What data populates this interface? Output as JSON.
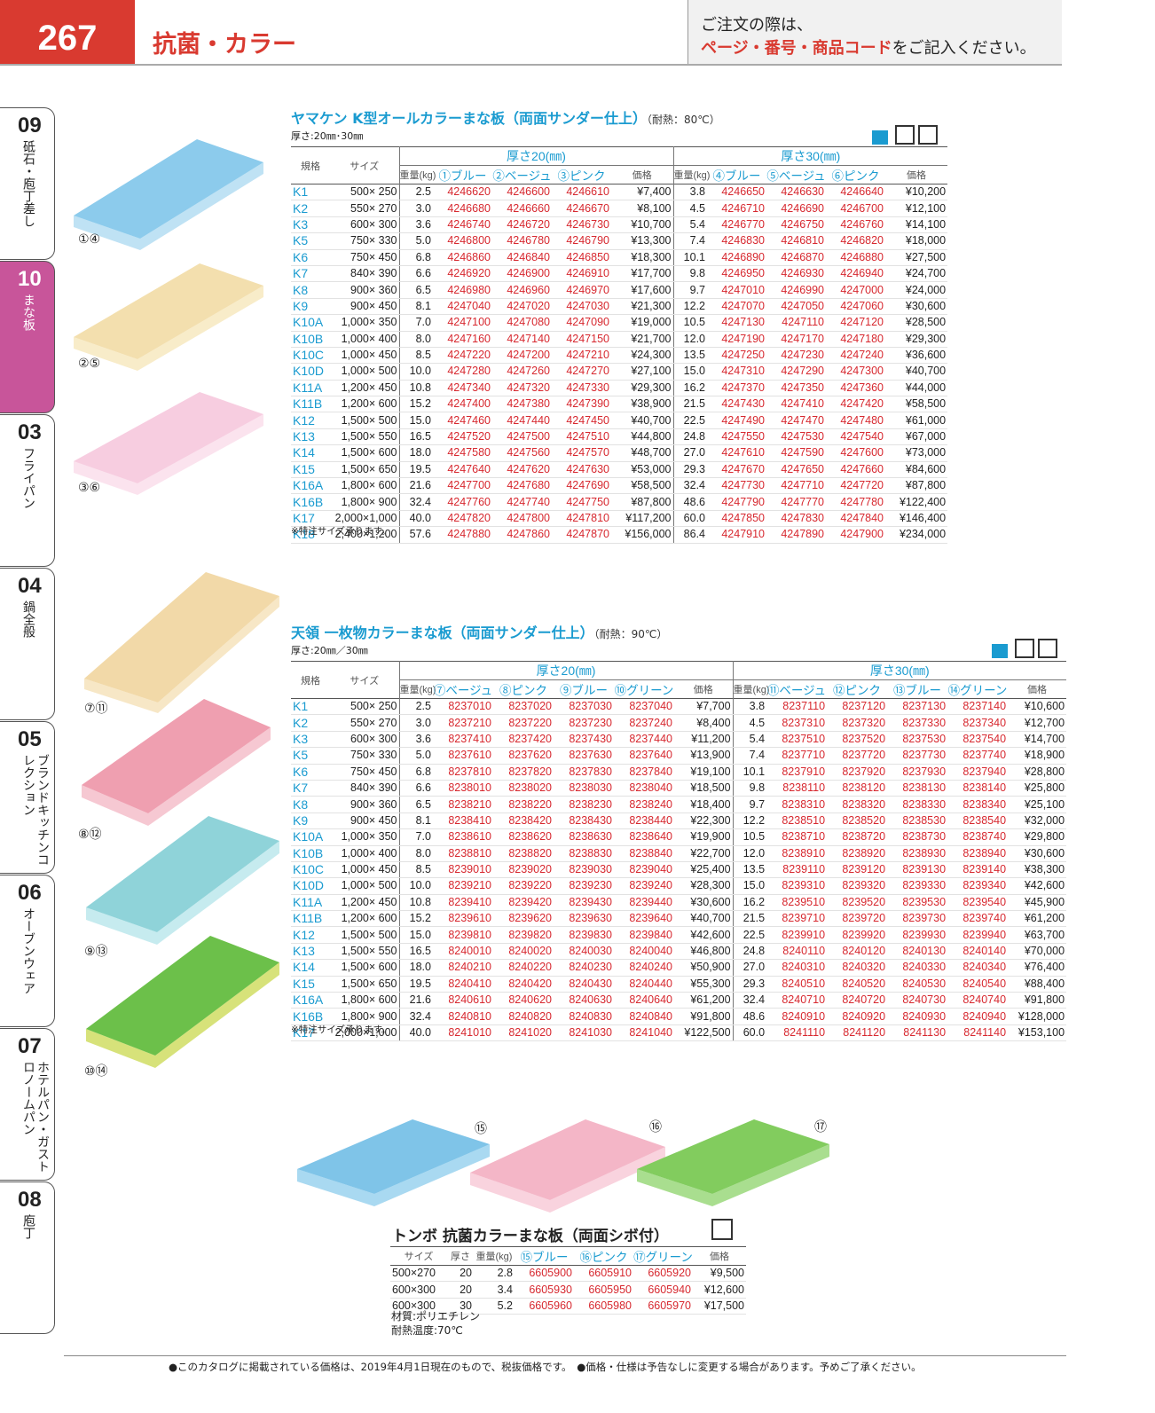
{
  "header": {
    "page": "267",
    "title": "抗菌・カラー",
    "notice": [
      "ご注文の際は、",
      "ページ・番号・商品コード",
      "をご記入ください。"
    ]
  },
  "tabs": [
    {
      "num": "09",
      "label": "砥石・庖丁差し"
    },
    {
      "num": "10",
      "label": "まな板"
    },
    {
      "num": "03",
      "label": "フライパン"
    },
    {
      "num": "04",
      "label": "鍋全般"
    },
    {
      "num": "05",
      "label": "ブランドキッチンコレクション"
    },
    {
      "num": "06",
      "label": "オーブンウェア"
    },
    {
      "num": "07",
      "label": "ホテルパン・ガストロノームパン"
    },
    {
      "num": "08",
      "label": "庖丁"
    }
  ],
  "products": [
    {
      "title": "ヤマケン K型オールカラーまな板（両面サンダー仕上）",
      "heat": "（耐熱：80℃）",
      "thickness": "厚さ:20㎜･30㎜",
      "image_labels": [
        "①④",
        "②⑤",
        "③⑥"
      ],
      "table": {
        "head1": [
          "規格",
          "サイズ",
          "厚さ20(㎜)",
          "厚さ30(㎜)"
        ],
        "head2": [
          "重量(kg)",
          "①ブルー",
          "②ベージュ",
          "③ピンク",
          "価格",
          "重量(kg)",
          "④ブルー",
          "⑤ベージュ",
          "⑥ピンク",
          "価格"
        ],
        "rows": [
          [
            "K1",
            "500× 250",
            "2.5",
            "4246620",
            "4246600",
            "4246610",
            "¥7,400",
            "3.8",
            "4246650",
            "4246630",
            "4246640",
            "¥10,200"
          ],
          [
            "K2",
            "550× 270",
            "3.0",
            "4246680",
            "4246660",
            "4246670",
            "¥8,100",
            "4.5",
            "4246710",
            "4246690",
            "4246700",
            "¥12,100"
          ],
          [
            "K3",
            "600× 300",
            "3.6",
            "4246740",
            "4246720",
            "4246730",
            "¥10,700",
            "5.4",
            "4246770",
            "4246750",
            "4246760",
            "¥14,100"
          ],
          [
            "K5",
            "750× 330",
            "5.0",
            "4246800",
            "4246780",
            "4246790",
            "¥13,300",
            "7.4",
            "4246830",
            "4246810",
            "4246820",
            "¥18,000"
          ],
          [
            "K6",
            "750× 450",
            "6.8",
            "4246860",
            "4246840",
            "4246850",
            "¥18,300",
            "10.1",
            "4246890",
            "4246870",
            "4246880",
            "¥27,500"
          ],
          [
            "K7",
            "840× 390",
            "6.6",
            "4246920",
            "4246900",
            "4246910",
            "¥17,700",
            "9.8",
            "4246950",
            "4246930",
            "4246940",
            "¥24,700"
          ],
          [
            "K8",
            "900× 360",
            "6.5",
            "4246980",
            "4246960",
            "4246970",
            "¥17,600",
            "9.7",
            "4247010",
            "4246990",
            "4247000",
            "¥24,000"
          ],
          [
            "K9",
            "900× 450",
            "8.1",
            "4247040",
            "4247020",
            "4247030",
            "¥21,300",
            "12.2",
            "4247070",
            "4247050",
            "4247060",
            "¥30,600"
          ],
          [
            "K10A",
            "1,000× 350",
            "7.0",
            "4247100",
            "4247080",
            "4247090",
            "¥19,000",
            "10.5",
            "4247130",
            "4247110",
            "4247120",
            "¥28,500"
          ],
          [
            "K10B",
            "1,000× 400",
            "8.0",
            "4247160",
            "4247140",
            "4247150",
            "¥21,700",
            "12.0",
            "4247190",
            "4247170",
            "4247180",
            "¥29,300"
          ],
          [
            "K10C",
            "1,000× 450",
            "8.5",
            "4247220",
            "4247200",
            "4247210",
            "¥24,300",
            "13.5",
            "4247250",
            "4247230",
            "4247240",
            "¥36,600"
          ],
          [
            "K10D",
            "1,000× 500",
            "10.0",
            "4247280",
            "4247260",
            "4247270",
            "¥27,100",
            "15.0",
            "4247310",
            "4247290",
            "4247300",
            "¥40,700"
          ],
          [
            "K11A",
            "1,200× 450",
            "10.8",
            "4247340",
            "4247320",
            "4247330",
            "¥29,300",
            "16.2",
            "4247370",
            "4247350",
            "4247360",
            "¥44,000"
          ],
          [
            "K11B",
            "1,200× 600",
            "15.2",
            "4247400",
            "4247380",
            "4247390",
            "¥38,900",
            "21.5",
            "4247430",
            "4247410",
            "4247420",
            "¥58,500"
          ],
          [
            "K12",
            "1,500× 500",
            "15.0",
            "4247460",
            "4247440",
            "4247450",
            "¥40,700",
            "22.5",
            "4247490",
            "4247470",
            "4247480",
            "¥61,000"
          ],
          [
            "K13",
            "1,500× 550",
            "16.5",
            "4247520",
            "4247500",
            "4247510",
            "¥44,800",
            "24.8",
            "4247550",
            "4247530",
            "4247540",
            "¥67,000"
          ],
          [
            "K14",
            "1,500× 600",
            "18.0",
            "4247580",
            "4247560",
            "4247570",
            "¥48,700",
            "27.0",
            "4247610",
            "4247590",
            "4247600",
            "¥73,000"
          ],
          [
            "K15",
            "1,500× 650",
            "19.5",
            "4247640",
            "4247620",
            "4247630",
            "¥53,000",
            "29.3",
            "4247670",
            "4247650",
            "4247660",
            "¥84,600"
          ],
          [
            "K16A",
            "1,800× 600",
            "21.6",
            "4247700",
            "4247680",
            "4247690",
            "¥58,500",
            "32.4",
            "4247730",
            "4247710",
            "4247720",
            "¥87,800"
          ],
          [
            "K16B",
            "1,800× 900",
            "32.4",
            "4247760",
            "4247740",
            "4247750",
            "¥87,800",
            "48.6",
            "4247790",
            "4247770",
            "4247780",
            "¥122,400"
          ],
          [
            "K17",
            "2,000×1,000",
            "40.0",
            "4247820",
            "4247800",
            "4247810",
            "¥117,200",
            "60.0",
            "4247850",
            "4247830",
            "4247840",
            "¥146,400"
          ],
          [
            "K18",
            "2,400×1,200",
            "57.6",
            "4247880",
            "4247860",
            "4247870",
            "¥156,000",
            "86.4",
            "4247910",
            "4247890",
            "4247900",
            "¥234,000"
          ]
        ]
      },
      "note": "※特注サイズ承ります。"
    },
    {
      "title": "天領 一枚物カラーまな板（両面サンダー仕上）",
      "heat": "（耐熱：90℃）",
      "thickness": "厚さ:20㎜／30㎜",
      "image_labels": [
        "⑦⑪",
        "⑧⑫",
        "⑨⑬",
        "⑩⑭"
      ],
      "table": {
        "head1": [
          "規格",
          "サイズ",
          "厚さ20(㎜)",
          "厚さ30(㎜)"
        ],
        "head2": [
          "重量(kg)",
          "⑦ベージュ",
          "⑧ピンク",
          "⑨ブルー",
          "⑩グリーン",
          "価格",
          "重量(kg)",
          "⑪ベージュ",
          "⑫ピンク",
          "⑬ブルー",
          "⑭グリーン",
          "価格"
        ],
        "rows": [
          [
            "K1",
            "500× 250",
            "2.5",
            "8237010",
            "8237020",
            "8237030",
            "8237040",
            "¥7,700",
            "3.8",
            "8237110",
            "8237120",
            "8237130",
            "8237140",
            "¥10,600"
          ],
          [
            "K2",
            "550× 270",
            "3.0",
            "8237210",
            "8237220",
            "8237230",
            "8237240",
            "¥8,400",
            "4.5",
            "8237310",
            "8237320",
            "8237330",
            "8237340",
            "¥12,700"
          ],
          [
            "K3",
            "600× 300",
            "3.6",
            "8237410",
            "8237420",
            "8237430",
            "8237440",
            "¥11,200",
            "5.4",
            "8237510",
            "8237520",
            "8237530",
            "8237540",
            "¥14,700"
          ],
          [
            "K5",
            "750× 330",
            "5.0",
            "8237610",
            "8237620",
            "8237630",
            "8237640",
            "¥13,900",
            "7.4",
            "8237710",
            "8237720",
            "8237730",
            "8237740",
            "¥18,900"
          ],
          [
            "K6",
            "750× 450",
            "6.8",
            "8237810",
            "8237820",
            "8237830",
            "8237840",
            "¥19,100",
            "10.1",
            "8237910",
            "8237920",
            "8237930",
            "8237940",
            "¥28,800"
          ],
          [
            "K7",
            "840× 390",
            "6.6",
            "8238010",
            "8238020",
            "8238030",
            "8238040",
            "¥18,500",
            "9.8",
            "8238110",
            "8238120",
            "8238130",
            "8238140",
            "¥25,800"
          ],
          [
            "K8",
            "900× 360",
            "6.5",
            "8238210",
            "8238220",
            "8238230",
            "8238240",
            "¥18,400",
            "9.7",
            "8238310",
            "8238320",
            "8238330",
            "8238340",
            "¥25,100"
          ],
          [
            "K9",
            "900× 450",
            "8.1",
            "8238410",
            "8238420",
            "8238430",
            "8238440",
            "¥22,300",
            "12.2",
            "8238510",
            "8238520",
            "8238530",
            "8238540",
            "¥32,000"
          ],
          [
            "K10A",
            "1,000× 350",
            "7.0",
            "8238610",
            "8238620",
            "8238630",
            "8238640",
            "¥19,900",
            "10.5",
            "8238710",
            "8238720",
            "8238730",
            "8238740",
            "¥29,800"
          ],
          [
            "K10B",
            "1,000× 400",
            "8.0",
            "8238810",
            "8238820",
            "8238830",
            "8238840",
            "¥22,700",
            "12.0",
            "8238910",
            "8238920",
            "8238930",
            "8238940",
            "¥30,600"
          ],
          [
            "K10C",
            "1,000× 450",
            "8.5",
            "8239010",
            "8239020",
            "8239030",
            "8239040",
            "¥25,400",
            "13.5",
            "8239110",
            "8239120",
            "8239130",
            "8239140",
            "¥38,300"
          ],
          [
            "K10D",
            "1,000× 500",
            "10.0",
            "8239210",
            "8239220",
            "8239230",
            "8239240",
            "¥28,300",
            "15.0",
            "8239310",
            "8239320",
            "8239330",
            "8239340",
            "¥42,600"
          ],
          [
            "K11A",
            "1,200× 450",
            "10.8",
            "8239410",
            "8239420",
            "8239430",
            "8239440",
            "¥30,600",
            "16.2",
            "8239510",
            "8239520",
            "8239530",
            "8239540",
            "¥45,900"
          ],
          [
            "K11B",
            "1,200× 600",
            "15.2",
            "8239610",
            "8239620",
            "8239630",
            "8239640",
            "¥40,700",
            "21.5",
            "8239710",
            "8239720",
            "8239730",
            "8239740",
            "¥61,200"
          ],
          [
            "K12",
            "1,500× 500",
            "15.0",
            "8239810",
            "8239820",
            "8239830",
            "8239840",
            "¥42,600",
            "22.5",
            "8239910",
            "8239920",
            "8239930",
            "8239940",
            "¥63,700"
          ],
          [
            "K13",
            "1,500× 550",
            "16.5",
            "8240010",
            "8240020",
            "8240030",
            "8240040",
            "¥46,800",
            "24.8",
            "8240110",
            "8240120",
            "8240130",
            "8240140",
            "¥70,000"
          ],
          [
            "K14",
            "1,500× 600",
            "18.0",
            "8240210",
            "8240220",
            "8240230",
            "8240240",
            "¥50,900",
            "27.0",
            "8240310",
            "8240320",
            "8240330",
            "8240340",
            "¥76,400"
          ],
          [
            "K15",
            "1,500× 650",
            "19.5",
            "8240410",
            "8240420",
            "8240430",
            "8240440",
            "¥55,300",
            "29.3",
            "8240510",
            "8240520",
            "8240530",
            "8240540",
            "¥88,400"
          ],
          [
            "K16A",
            "1,800× 600",
            "21.6",
            "8240610",
            "8240620",
            "8240630",
            "8240640",
            "¥61,200",
            "32.4",
            "8240710",
            "8240720",
            "8240730",
            "8240740",
            "¥91,800"
          ],
          [
            "K16B",
            "1,800× 900",
            "32.4",
            "8240810",
            "8240820",
            "8240830",
            "8240840",
            "¥91,800",
            "48.6",
            "8240910",
            "8240920",
            "8240930",
            "8240940",
            "¥128,000"
          ],
          [
            "K17",
            "2,000×1,000",
            "40.0",
            "8241010",
            "8241020",
            "8241030",
            "8241040",
            "¥122,500",
            "60.0",
            "8241110",
            "8241120",
            "8241130",
            "8241140",
            "¥153,100"
          ]
        ]
      },
      "note": "※特注サイズ承ります。"
    },
    {
      "title": "トンボ 抗菌カラーまな板（両面シボ付）",
      "image_labels": [
        "⑮",
        "⑯",
        "⑰"
      ],
      "table": {
        "head": [
          "サイズ",
          "厚さ",
          "重量(kg)",
          "⑮ブルー",
          "⑯ピンク",
          "⑰グリーン",
          "価格"
        ],
        "rows": [
          [
            "500×270",
            "20",
            "2.8",
            "6605900",
            "6605910",
            "6605920",
            "¥9,500"
          ],
          [
            "600×300",
            "20",
            "3.4",
            "6605930",
            "6605950",
            "6605940",
            "¥12,600"
          ],
          [
            "600×300",
            "30",
            "5.2",
            "6605960",
            "6605980",
            "6605970",
            "¥17,500"
          ]
        ]
      },
      "specs": [
        "材質:ポリエチレン",
        "耐熱温度:70℃"
      ]
    }
  ],
  "footer": [
    "●このカタログに掲載されている価格は、2019年4月1日現在のもので、税抜価格です。",
    "●価格・仕様は予告なしに変更する場合があります。予めご了承ください。"
  ]
}
